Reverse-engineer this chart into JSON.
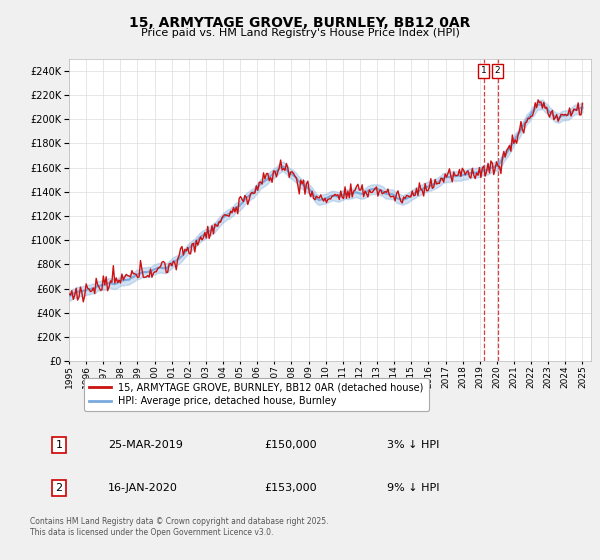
{
  "title": "15, ARMYTAGE GROVE, BURNLEY, BB12 0AR",
  "subtitle": "Price paid vs. HM Land Registry's House Price Index (HPI)",
  "ylim": [
    0,
    250000
  ],
  "yticks": [
    0,
    20000,
    40000,
    60000,
    80000,
    100000,
    120000,
    140000,
    160000,
    180000,
    200000,
    220000,
    240000
  ],
  "xlim_start": 1995,
  "xlim_end": 2025.5,
  "hpi_color": "#7aaadd",
  "price_color": "#cc1111",
  "marker1_x": 2019.22,
  "marker2_x": 2020.04,
  "legend_line1": "15, ARMYTAGE GROVE, BURNLEY, BB12 0AR (detached house)",
  "legend_line2": "HPI: Average price, detached house, Burnley",
  "table_row1": [
    "1",
    "25-MAR-2019",
    "£150,000",
    "3% ↓ HPI"
  ],
  "table_row2": [
    "2",
    "16-JAN-2020",
    "£153,000",
    "9% ↓ HPI"
  ],
  "footnote": "Contains HM Land Registry data © Crown copyright and database right 2025.\nThis data is licensed under the Open Government Licence v3.0.",
  "bg_color": "#f0f0f0",
  "plot_bg_color": "#ffffff",
  "grid_color": "#dddddd",
  "hpi_band_alpha": 0.35,
  "title_fontsize": 10,
  "subtitle_fontsize": 8,
  "tick_fontsize": 6.5,
  "ytick_fontsize": 7
}
